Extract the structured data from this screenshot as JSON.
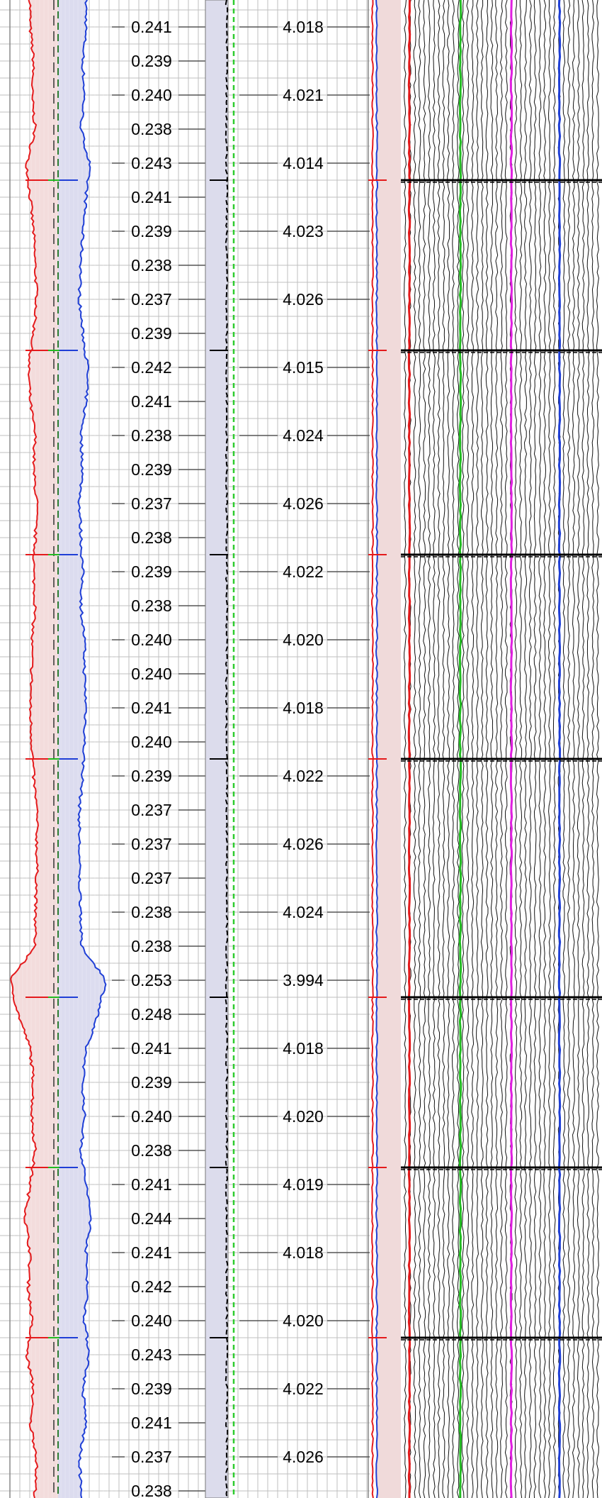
{
  "chart_data": {
    "type": "line",
    "title": "",
    "xlabel": "",
    "ylabel": "",
    "colors": {
      "left_curve": "#e41a1c",
      "right_curve": "#1f3fd6",
      "left_fill": "#f3dcdc",
      "right_fill": "#dcdcef",
      "centerline": "#2e7d32",
      "track_fill": "#dcdcec",
      "dashed_curve": "#000000",
      "green_dashed": "#2ecc2e",
      "red_trace": "#e41a1c",
      "green_trace": "#22bb22",
      "magenta_trace": "#e020e0",
      "blue_trace": "#1f3fd6",
      "tick_line": "#555555",
      "grid": "#bfbfbf"
    },
    "depth_ticks": 45,
    "series": [
      {
        "values": [
          0.241,
          0.239,
          0.24,
          0.238,
          0.243,
          0.241,
          0.239,
          0.238,
          0.237,
          0.239,
          0.242,
          0.241,
          0.238,
          0.239,
          0.237,
          0.238,
          0.239,
          0.238,
          0.24,
          0.24,
          0.241,
          0.24,
          0.239,
          0.237,
          0.237,
          0.237,
          0.238,
          0.238,
          0.253,
          0.248,
          0.241,
          0.239,
          0.24,
          0.238,
          0.241,
          0.244,
          0.241,
          0.242,
          0.24,
          0.243,
          0.239,
          0.241,
          0.237,
          0.238
        ]
      },
      {
        "values": [
          4.018,
          4.021,
          4.014,
          4.023,
          4.026,
          4.015,
          4.024,
          4.026,
          4.022,
          4.02,
          4.018,
          4.022,
          4.026,
          4.024,
          3.994,
          4.018,
          4.02,
          4.019,
          4.018,
          4.02,
          4.022,
          4.026
        ]
      }
    ],
    "collar_ticks": [
      5,
      10,
      16,
      22,
      29,
      34,
      39
    ]
  }
}
